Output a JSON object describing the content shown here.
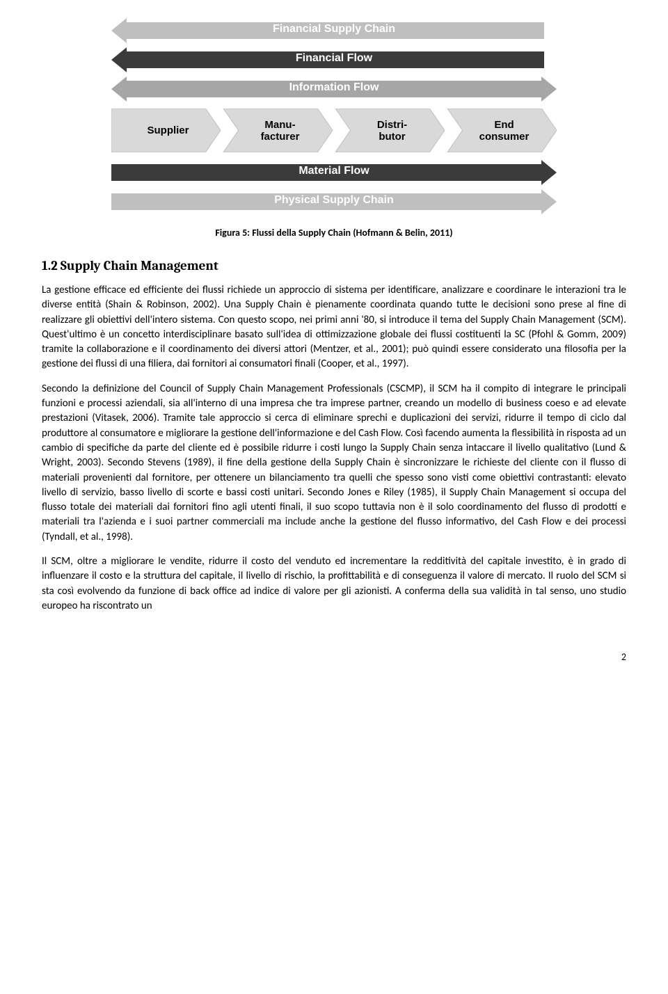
{
  "diagram": {
    "colors": {
      "grey_light": "#bfbfbf",
      "black": "#3b3b3b",
      "grey_mid": "#a6a6a6",
      "chevron_bg": "#d9d9d9",
      "chevron_border": "#bfbfbf",
      "label_white": "#ffffff",
      "label_black": "#000000"
    },
    "bands": {
      "fsc": "Financial Supply Chain",
      "ff": "Financial Flow",
      "if": "Information Flow",
      "mf": "Material Flow",
      "psc": "Physical Supply Chain"
    },
    "chevrons": {
      "supplier": "Supplier",
      "manufacturer": "Manu-\nfacturer",
      "distributor": "Distri-\nbutor",
      "end_consumer": "End\nconsumer"
    }
  },
  "caption": "Figura 5: Flussi della Supply Chain (Hofmann & Belin, 2011)",
  "section_number": "1.2",
  "section_title": "Supply Chain Management",
  "paragraph1": "La gestione efficace ed efficiente dei flussi richiede un approccio di sistema per identificare, analizzare e coordinare le interazioni tra le diverse entità (Shain & Robinson, 2002). Una Supply Chain è pienamente coordinata quando tutte le decisioni sono prese al fine di realizzare gli obiettivi dell'intero sistema. Con questo scopo, nei primi anni '80, si introduce il tema del Supply Chain Management (SCM). Quest'ultimo è un concetto interdisciplinare basato sull'idea di ottimizzazione globale dei flussi costituenti la SC (Pfohl & Gomm, 2009) tramite la collaborazione e il coordinamento dei diversi attori (Mentzer, et al., 2001); può quindi essere considerato una filosofia per la gestione dei flussi di una filiera, dai fornitori ai consumatori finali (Cooper, et al., 1997).",
  "paragraph2": "Secondo la definizione del Council of Supply Chain Management Professionals (CSCMP), il SCM ha il compito di integrare le principali funzioni e processi aziendali, sia all'interno di una impresa che tra imprese partner, creando un modello di business coeso e ad elevate prestazioni (Vitasek, 2006). Tramite tale approccio si cerca di eliminare sprechi e duplicazioni dei servizi, ridurre il tempo di ciclo dal produttore al consumatore e migliorare la gestione dell'informazione e del Cash Flow. Così facendo aumenta la flessibilità in risposta ad un cambio di specifiche da parte del cliente ed è possibile ridurre i costi lungo la Supply Chain senza intaccare il livello qualitativo (Lund & Wright, 2003). Secondo Stevens (1989), il fine della gestione della Supply Chain è sincronizzare le richieste del cliente con il flusso di materiali provenienti dal fornitore, per ottenere un bilanciamento tra quelli che spesso sono visti come obiettivi contrastanti: elevato livello di servizio, basso livello di scorte e bassi costi unitari. Secondo Jones e Riley (1985), il Supply Chain Management si occupa del flusso totale dei materiali dai fornitori fino agli utenti finali, il suo scopo tuttavia non è il solo coordinamento del flusso di prodotti e materiali tra l'azienda e i suoi partner commerciali ma include anche la gestione del flusso informativo, del Cash Flow e dei processi (Tyndall, et al., 1998).",
  "paragraph3": "Il SCM, oltre a migliorare le vendite, ridurre il costo del venduto ed incrementare la redditività del capitale investito, è in grado di influenzare il costo e la struttura del capitale, il livello di rischio, la profittabilità e di conseguenza il valore di mercato. Il ruolo del SCM si sta così evolvendo da funzione di back office ad indice di valore per gli azionisti. A conferma della sua validità in tal senso, uno studio europeo ha riscontrato un",
  "page_number": "2"
}
